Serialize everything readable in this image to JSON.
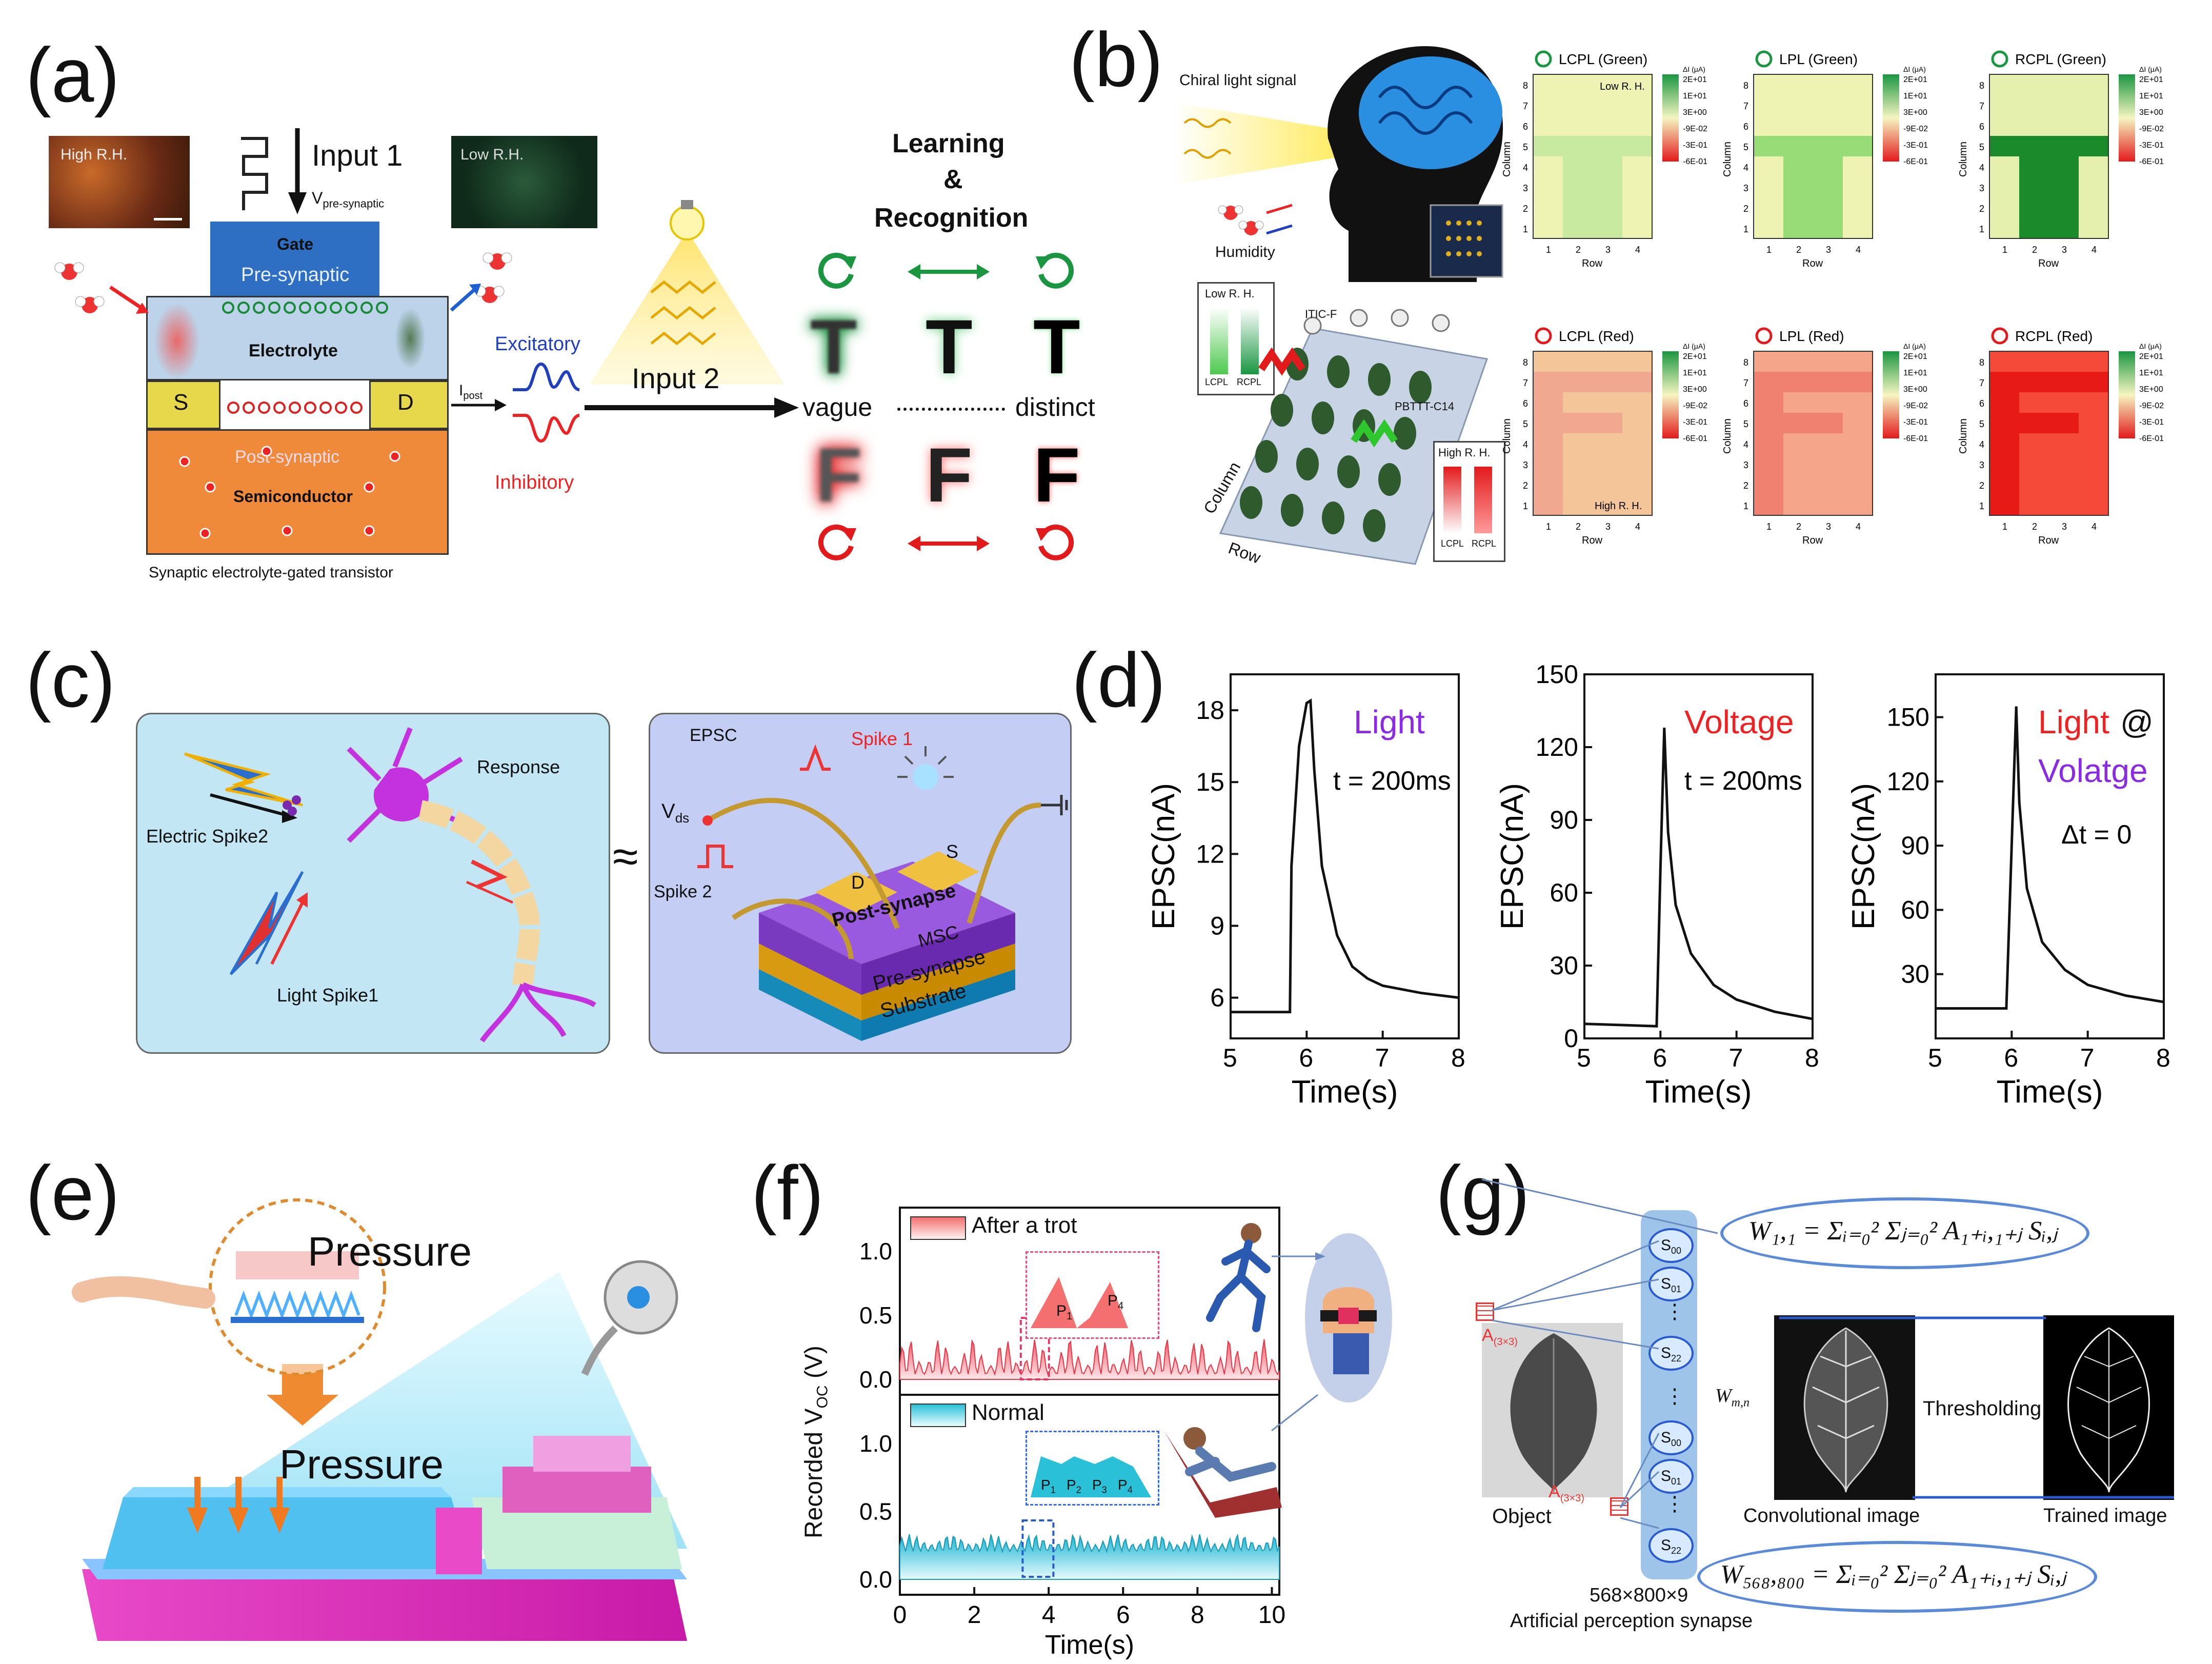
{
  "panels": {
    "a": {
      "label": "(a)",
      "high_rh": "High R.H.",
      "low_rh": "Low R.H.",
      "input1": "Input 1",
      "v_pre_main": "V",
      "v_pre_sub": "pre-synaptic",
      "gate": "Gate",
      "pre_synaptic": "Pre-synaptic",
      "electrolyte": "Electrolyte",
      "s": "S",
      "d": "D",
      "post_synaptic": "Post-synaptic",
      "semiconductor": "Semiconductor",
      "caption": "Synaptic electrolyte-gated transistor",
      "ipost_main": "I",
      "ipost_sub": "post",
      "excitatory": "Excitatory",
      "inhibitory": "Inhibitory",
      "input2": "Input 2",
      "learning_1": "Learning",
      "learning_2": "&",
      "learning_3": "Recognition",
      "vague": "vague",
      "distinct": "distinct",
      "letter_t": "T",
      "letter_f": "F"
    },
    "b": {
      "label": "(b)",
      "chiral": "Chiral light signal",
      "humidity": "Humidity",
      "low_rh": "Low R. H.",
      "high_rh": "High R. H.",
      "itic": "ITIC-F",
      "pbttt": "PBTTT-C14",
      "column": "Column",
      "row": "Row",
      "lcpl": "LCPL",
      "rcpl": "RCPL",
      "colorbar_unit": "ΔI (μA)",
      "colorbar_ticks": [
        "2E+01",
        "1E+01",
        "3E+00",
        "-9E-02",
        "-3E-01",
        "-6E-01"
      ],
      "heatmap_titles": [
        "LCPL (Green)",
        "LPL (Green)",
        "RCPL (Green)",
        "LCPL (Red)",
        "LPL (Red)",
        "RCPL (Red)"
      ],
      "hm_low": "Low R. H.",
      "hm_high": "High R. H.",
      "hm_ylabel": "Column",
      "hm_xlabel": "Row",
      "y_ticks": [
        "8",
        "7",
        "6",
        "5",
        "4",
        "3",
        "2",
        "1"
      ],
      "x_ticks": [
        "1",
        "2",
        "3",
        "4"
      ]
    },
    "c": {
      "label": "(c)",
      "electric_spike2": "Electric Spike2",
      "light_spike1": "Light Spike1",
      "response": "Response",
      "approx": "≈",
      "epsc": "EPSC",
      "spike1": "Spike 1",
      "vds_main": "V",
      "vds_sub": "ds",
      "spike2": "Spike 2",
      "d": "D",
      "s": "S",
      "post_synapse": "Post-synapse",
      "msc": "MSC",
      "pre_synapse": "Pre-synapse",
      "substrate": "Substrate"
    },
    "d": {
      "label": "(d)",
      "ylabel": "EPSC(nA)",
      "xlabel": "Time(s)",
      "plot1_title": "Light",
      "plot1_note": "t = 200ms",
      "plot2_title": "Voltage",
      "plot2_note": "t = 200ms",
      "plot3_title_a": "Light",
      "plot3_title_b": "@",
      "plot3_title_c": "Volatge",
      "plot3_note": "Δt = 0"
    },
    "e": {
      "label": "(e)",
      "pressure_top": "Pressure",
      "pressure_bottom": "Pressure"
    },
    "f": {
      "label": "(f)",
      "ylabel": "Recorded V",
      "ylabel_sub": "OC",
      "ylabel_unit": " (V)",
      "xlabel": "Time(s)",
      "legend_top": "After a trot",
      "legend_bottom": "Normal",
      "p1": "P",
      "p1s": "1",
      "p2": "P",
      "p2s": "2",
      "p3": "P",
      "p3s": "3",
      "p4": "P",
      "p4s": "4"
    },
    "g": {
      "label": "(g)",
      "object": "Object",
      "a33_main": "A",
      "a33_sub": "(3×3)",
      "s00": "S",
      "s00s": "00",
      "s01": "S",
      "s01s": "01",
      "s22": "S",
      "s22s": "22",
      "dots": "⋮",
      "w_mn_main": "W",
      "w_mn_sub": "m,n",
      "formula_top": "W₁,₁ = Σᵢ₌₀² Σⱼ₌₀² A₁₊ᵢ,₁₊ⱼ Sᵢ,ⱼ",
      "formula_bottom": "W₅₆₈,₈₀₀ = Σᵢ₌₀² Σⱼ₌₀² A₁₊ᵢ,₁₊ⱼ Sᵢ,ⱼ",
      "conv_image": "Convolutional image",
      "thresholding": "Thresholding",
      "trained_image": "Trained image",
      "dims": "568×800×9",
      "synapse": "Artificial perception synapse"
    }
  },
  "chart_data": [
    {
      "type": "line",
      "title": "Light",
      "annotation": "t = 200ms",
      "xlabel": "Time(s)",
      "ylabel": "EPSC(nA)",
      "xlim": [
        5,
        8
      ],
      "ylim": [
        4.3,
        19.5
      ],
      "xticks": [
        5,
        6,
        7,
        8
      ],
      "yticks": [
        6,
        9,
        12,
        15,
        18
      ],
      "x": [
        5.0,
        5.5,
        5.78,
        5.8,
        5.9,
        6.0,
        6.05,
        6.1,
        6.2,
        6.4,
        6.6,
        6.8,
        7.0,
        7.5,
        8.0
      ],
      "y": [
        5.4,
        5.4,
        5.4,
        11.5,
        16.5,
        18.3,
        18.4,
        15.5,
        11.5,
        8.6,
        7.3,
        6.8,
        6.5,
        6.2,
        6.0
      ]
    },
    {
      "type": "line",
      "title": "Voltage",
      "annotation": "t = 200ms",
      "xlabel": "Time(s)",
      "ylabel": "EPSC(nA)",
      "xlim": [
        5,
        8
      ],
      "ylim": [
        0,
        150
      ],
      "xticks": [
        5,
        6,
        7,
        8
      ],
      "yticks": [
        0,
        30,
        60,
        90,
        120,
        150
      ],
      "x": [
        5.0,
        5.5,
        5.95,
        6.0,
        6.05,
        6.1,
        6.2,
        6.4,
        6.7,
        7.0,
        7.5,
        8.0
      ],
      "y": [
        6,
        5.5,
        5,
        70,
        128,
        85,
        55,
        35,
        22,
        16,
        11,
        8
      ]
    },
    {
      "type": "line",
      "title": "Light @ Volatge",
      "annotation": "Δt = 0",
      "xlabel": "Time(s)",
      "ylabel": "EPSC(nA)",
      "xlim": [
        5,
        8
      ],
      "ylim": [
        0,
        170
      ],
      "xticks": [
        5,
        6,
        7,
        8
      ],
      "yticks": [
        30,
        60,
        90,
        120,
        150
      ],
      "x": [
        5.0,
        5.5,
        5.93,
        6.0,
        6.06,
        6.1,
        6.2,
        6.4,
        6.7,
        7.0,
        7.5,
        8.0
      ],
      "y": [
        14,
        14,
        14,
        90,
        155,
        110,
        70,
        45,
        32,
        25,
        20,
        17
      ]
    },
    {
      "type": "line",
      "title": "Recorded VOC",
      "xlabel": "Time(s)",
      "ylabel": "Recorded VOC (V)",
      "xlim": [
        0,
        10.2
      ],
      "xticks": [
        0,
        2,
        4,
        6,
        8,
        10
      ],
      "yticks_top": [
        0.0,
        0.5,
        1.0
      ],
      "yticks_bottom": [
        0.0,
        0.5,
        1.0
      ],
      "series": [
        {
          "name": "After a trot",
          "amplitude_range": [
            0.0,
            0.35
          ]
        },
        {
          "name": "Normal",
          "amplitude_range": [
            0.12,
            0.28
          ]
        }
      ]
    }
  ],
  "colors": {
    "green": "#1a9641",
    "red": "#e31a1c",
    "blue": "#1f3fbf",
    "purple": "#8a2be2",
    "gate": "#2f6fc3",
    "electrolyte": "#bcd3ea",
    "semiconductor": "#ef8a3a",
    "sd": "#e6d84a"
  }
}
